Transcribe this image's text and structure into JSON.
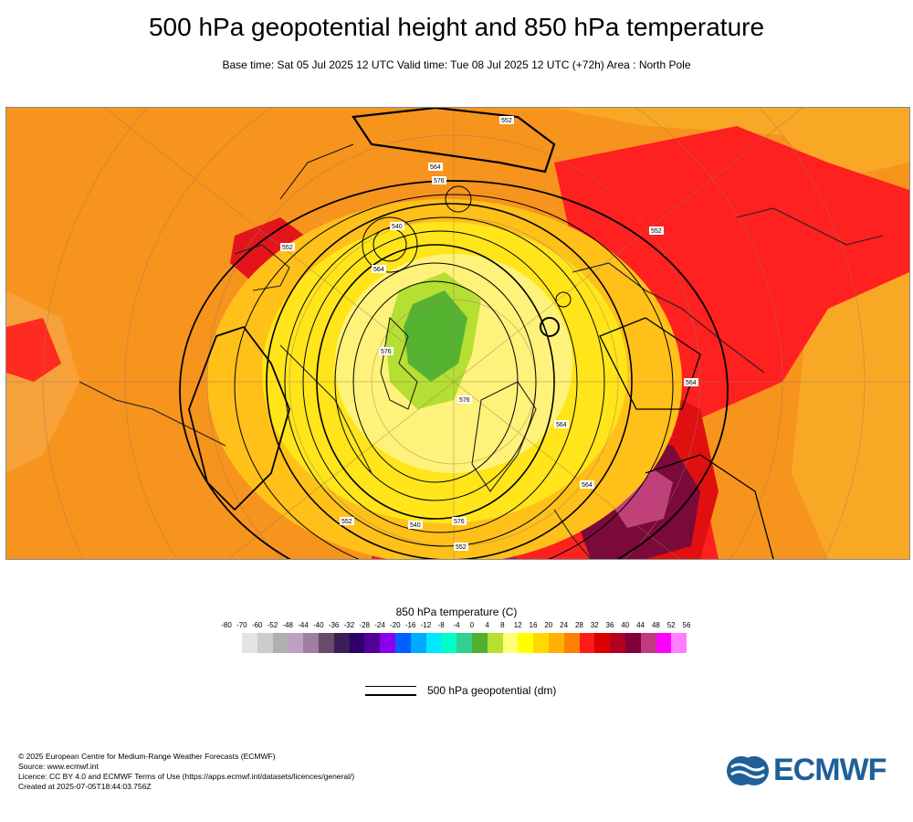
{
  "header": {
    "title": "500 hPa geopotential height and 850 hPa temperature",
    "subtitle": "Base time: Sat 05 Jul 2025 12 UTC Valid time: Tue 08 Jul 2025 12 UTC (+72h) Area : North Pole"
  },
  "map": {
    "area": "North Pole",
    "contour_labels": [
      "552",
      "564",
      "576",
      "540",
      "552",
      "564",
      "576",
      "564",
      "552",
      "564",
      "576",
      "552",
      "540",
      "576",
      "564",
      "552"
    ]
  },
  "legend": {
    "title": "850 hPa temperature (C)",
    "ticks": [
      "-80",
      "-70",
      "-60",
      "-52",
      "-48",
      "-44",
      "-40",
      "-36",
      "-32",
      "-28",
      "-24",
      "-20",
      "-16",
      "-12",
      "-8",
      "-4",
      "0",
      "4",
      "8",
      "12",
      "16",
      "20",
      "24",
      "28",
      "32",
      "36",
      "40",
      "44",
      "48",
      "52",
      "56"
    ],
    "colors": [
      "#e4e4e4",
      "#cccccc",
      "#b0b0b0",
      "#c0a0c0",
      "#a07ea0",
      "#6a4a6a",
      "#3a1e56",
      "#30006a",
      "#520096",
      "#8a00e8",
      "#0060ff",
      "#00aaff",
      "#00e8ff",
      "#00ffc8",
      "#30d090",
      "#50b030",
      "#b8e030",
      "#ffff78",
      "#ffff00",
      "#ffd800",
      "#ffb000",
      "#ff7f00",
      "#ff1a1a",
      "#dd0000",
      "#b00020",
      "#80003a",
      "#c03a80",
      "#ff00ff",
      "#ff80ff",
      "#ffb8ff",
      "#e8c8e8",
      "#e6e6e6"
    ]
  },
  "contour_key": {
    "label": "500 hPa geopotential (dm)"
  },
  "footer": {
    "lines": [
      "© 2025 European Centre for Medium-Range Weather Forecasts (ECMWF)",
      "Source: www.ecmwf.int",
      "Licence: CC BY 4.0 and ECMWF Terms of Use (https://apps.ecmwf.int/datasets/licences/general/)",
      "Created at 2025-07-05T18:44:03.756Z"
    ]
  },
  "logo": {
    "text": "ECMWF",
    "color": "#1f5f9a"
  }
}
